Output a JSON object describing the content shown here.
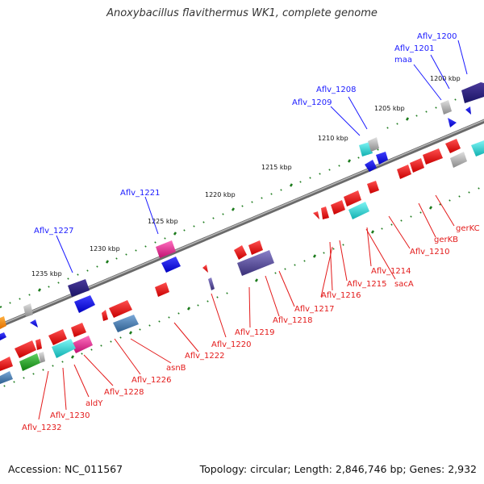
{
  "title": "Anoxybacillus flavithermus WK1, complete genome",
  "footer": {
    "accession": "Accession: NC_011567",
    "topology": "Topology: circular; Length: 2,846,746 bp; Genes: 2,932"
  },
  "colors": {
    "backbone": "#7a7a7a",
    "label_forward": "#1a1aff",
    "label_reverse": "#e31a1a",
    "tick_major": "#1a7a1a",
    "tick_minor": "#1a7a1a"
  },
  "scale_labels": [
    "1200 kbp",
    "1205 kbp",
    "1210 kbp",
    "1215 kbp",
    "1220 kbp",
    "1225 kbp",
    "1230 kbp",
    "1235 kbp"
  ],
  "forward_gene_labels": [
    "Aflv_1200",
    "Aflv_1201",
    "maa",
    "Aflv_1208",
    "Aflv_1209",
    "Aflv_1221",
    "Aflv_1227"
  ],
  "reverse_gene_labels": [
    "gerKC",
    "gerKB",
    "Aflv_1210",
    "Aflv_1214",
    "sacA",
    "Aflv_1215",
    "Aflv_1216",
    "Aflv_1217",
    "Aflv_1218",
    "Aflv_1219",
    "Aflv_1220",
    "Aflv_1222",
    "asnB",
    "Aflv_1226",
    "Aflv_1228",
    "aldY",
    "Aflv_1230",
    "Aflv_1232"
  ],
  "gene_colors": [
    "red",
    "blue",
    "navy",
    "cyan",
    "magenta",
    "steelblue",
    "gray",
    "green",
    "slateblue",
    "orange"
  ]
}
